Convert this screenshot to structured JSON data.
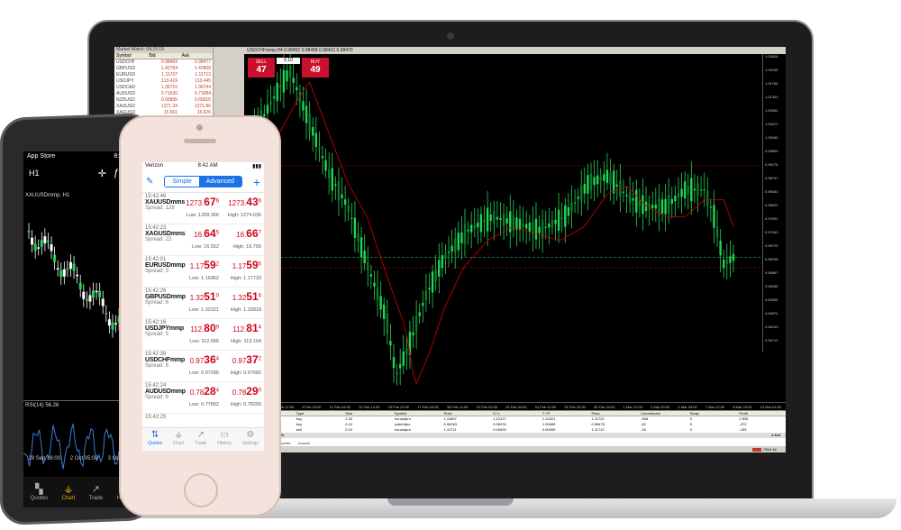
{
  "laptop": {
    "window_title": "USDCHFmmp,H4  0.98452  0.98458  0.98422  0.98470",
    "market_watch": {
      "title": "Market Watch: 04:15:19",
      "headers": [
        "Symbol",
        "Bid",
        "Ask"
      ],
      "rows": [
        {
          "symbol": "USDCHF",
          "bid": "0.98469",
          "ask": "0.98477"
        },
        {
          "symbol": "GBPUSD",
          "bid": "1.42784",
          "ask": "1.42808"
        },
        {
          "symbol": "EURUSD",
          "bid": "1.11707",
          "ask": "1.11713"
        },
        {
          "symbol": "USDJPY",
          "bid": "113.419",
          "ask": "113.445"
        },
        {
          "symbol": "USDCAD",
          "bid": "1.36710",
          "ask": "1.36744"
        },
        {
          "symbol": "AUDUSD",
          "bid": "0.71630",
          "ask": "0.71684"
        },
        {
          "symbol": "NZDUSD",
          "bid": "0.65895",
          "ask": "0.65915"
        },
        {
          "symbol": "XAUUSD",
          "bid": "1271.34",
          "ask": "1271.86"
        },
        {
          "symbol": "XAGUSD",
          "bid": "15.561",
          "ask": "15.626"
        },
        {
          "symbol": "EURUSDpro",
          "bid": "1.11712",
          "ask": "1.11725"
        },
        {
          "symbol": "GBPUSDpro",
          "bid": "1.42780",
          "ask": "1.42806"
        },
        {
          "symbol": "USDJPYpro",
          "bid": "113.442",
          "ask": "113.442"
        },
        {
          "symbol": "USDCHFpro",
          "bid": "0.98460",
          "ask": "0.98469"
        }
      ]
    },
    "trade_panel": {
      "sell_label": "SELL",
      "sell_price": "47",
      "sell_prefix": "0.98",
      "sell_sup": "8",
      "lot": "0.10",
      "buy_label": "BUY",
      "buy_price": "49",
      "buy_prefix": "0.98",
      "buy_sup": "8"
    },
    "price_axis": [
      "1.02626",
      "1.02195",
      "1.01764",
      "1.01333",
      "1.00902",
      "1.00471",
      "1.00040",
      "0.99609",
      "0.99178",
      "0.98747",
      "0.98452",
      "0.98022",
      "0.97591",
      "0.97160",
      "0.96729",
      "0.96298",
      "0.95867",
      "0.95436",
      "0.95005",
      "0.94574",
      "0.94143",
      "0.93712"
    ],
    "time_axis": [
      "5 Feb 2016",
      "8 Feb 12:00",
      "9 Feb 20:00",
      "11 Feb 04:00",
      "12 Feb 12:00",
      "15 Feb 20:00",
      "17 Feb 04:00",
      "18 Feb 12:00",
      "19 Feb 20:00",
      "23 Feb 04:00",
      "24 Feb 12:00",
      "25 Feb 20:00",
      "29 Feb 04:00",
      "1 Mar 12:00",
      "2 Mar 20:00",
      "4 Mar 04:00",
      "7 Mar 12:00",
      "8 Mar 20:00",
      "10 Mar 04:00"
    ],
    "terminal": {
      "headers": [
        "Order",
        "Type",
        "Size",
        "Symbol",
        "Price",
        "S / L",
        "T / P",
        "Price",
        "Commission",
        "Swap",
        "Profit"
      ],
      "rows": [
        [
          "43",
          "buy",
          "1.00",
          "eurusdpro",
          "1.11897",
          "1.10127",
          "1.13421",
          "1.11722",
          "-908",
          "0",
          "2 836"
        ],
        [
          "22",
          "buy",
          "0.10",
          "usdchfpro",
          "0.98263",
          "0.96476",
          "1.00665",
          "0.98476",
          "-62",
          "0",
          "-472"
        ],
        [
          "04",
          "sell",
          "0.10",
          "eurusdpro",
          "1.11711",
          "0.00000",
          "0.00000",
          "1.11722",
          "-15",
          "0",
          "-159"
        ]
      ],
      "margin_text": "Margin level: 178.22%",
      "margin_total": "2 114",
      "tabs": [
        "Code Base",
        "Experts",
        "Journal"
      ],
      "status_default": "Default",
      "traffic": "755/4 kb"
    }
  },
  "android": {
    "status_left": "App Store",
    "status_time": "8:42 AM",
    "timeframe": "H1",
    "chart_label": "XAUUSDmmp, H1",
    "rsi_label": "RSI(14) 56.26",
    "dates": [
      "29 Sep 16:00",
      "2 Oct 05:00",
      "3 Oct 21:00"
    ],
    "nav": [
      {
        "label": "Quotes",
        "icon": "▚"
      },
      {
        "label": "Chart",
        "icon": "⚶"
      },
      {
        "label": "Trade",
        "icon": "↗"
      },
      {
        "label": "History",
        "icon": "▭"
      }
    ]
  },
  "iphone": {
    "carrier": "Verizon",
    "time": "8:42 AM",
    "segment": [
      "Simple",
      "Advanced"
    ],
    "quotes": [
      {
        "time": "15:42:46",
        "symbol": "XAUUSDmms",
        "spread": "Spread: 128",
        "bid_main": "1273.",
        "bid_big": "67",
        "bid_sup": "6",
        "ask_main": "1273.",
        "ask_big": "43",
        "ask_sup": "6",
        "low": "Low: 1268.366",
        "high": "High: 1274.636"
      },
      {
        "time": "15:42:23",
        "symbol": "XAGUSDmms",
        "spread": "Spread: 22",
        "bid_main": "16.",
        "bid_big": "64",
        "bid_sup": "5",
        "ask_main": "16.",
        "ask_big": "66",
        "ask_sup": "7",
        "low": "Low: 16.552",
        "high": "High: 16.700"
      },
      {
        "time": "15:42:01",
        "symbol": "EURUSDmmp",
        "spread": "Spread: 3",
        "bid_main": "1.17",
        "bid_big": "59",
        "bid_sup": "2",
        "ask_main": "1.17",
        "ask_big": "59",
        "ask_sup": "5",
        "low": "Low: 1.16962",
        "high": "High: 1.17733"
      },
      {
        "time": "15:42:26",
        "symbol": "GBPUSDmmp",
        "spread": "Spread: 6",
        "bid_main": "1.32",
        "bid_big": "51",
        "bid_sup": "0",
        "ask_main": "1.32",
        "ask_big": "51",
        "ask_sup": "6",
        "low": "Low: 1.32221",
        "high": "High: 1.32818"
      },
      {
        "time": "15:42:16",
        "symbol": "USDJPYmmp",
        "spread": "Spread: 5",
        "bid_main": "112.",
        "bid_big": "80",
        "bid_sup": "9",
        "ask_main": "112.",
        "ask_big": "81",
        "ask_sup": "4",
        "low": "Low: 112.665",
        "high": "High: 113.194"
      },
      {
        "time": "15:42:39",
        "symbol": "USDCHFmmp",
        "spread": "Spread: 6",
        "bid_main": "0.97",
        "bid_big": "36",
        "bid_sup": "4",
        "ask_main": "0.97",
        "ask_big": "37",
        "ask_sup": "2",
        "low": "Low: 0.97285",
        "high": "High: 0.97682"
      },
      {
        "time": "15:42:24",
        "symbol": "AUDUSDmmp",
        "spread": "Spread: 6",
        "bid_main": "0.78",
        "bid_big": "28",
        "bid_sup": "4",
        "ask_main": "0.78",
        "ask_big": "29",
        "ask_sup": "0",
        "low": "Low: 0.77852",
        "high": "High: 0.78299"
      },
      {
        "time": "15:42:25",
        "symbol": "",
        "spread": "",
        "bid_main": "",
        "bid_big": "",
        "bid_sup": "",
        "ask_main": "",
        "ask_big": "",
        "ask_sup": "",
        "low": "",
        "high": ""
      }
    ],
    "tabs": [
      {
        "label": "Quotes",
        "icon": "⇅"
      },
      {
        "label": "Chart",
        "icon": "⚶"
      },
      {
        "label": "Trade",
        "icon": "↗"
      },
      {
        "label": "History",
        "icon": "▭"
      },
      {
        "label": "Settings",
        "icon": "⚙"
      }
    ]
  },
  "colors": {
    "bull": "#1fd655",
    "bear": "#0d7a2e",
    "ma": "#c00000",
    "sell": "#c8102e",
    "accent": "#1a73e8"
  }
}
